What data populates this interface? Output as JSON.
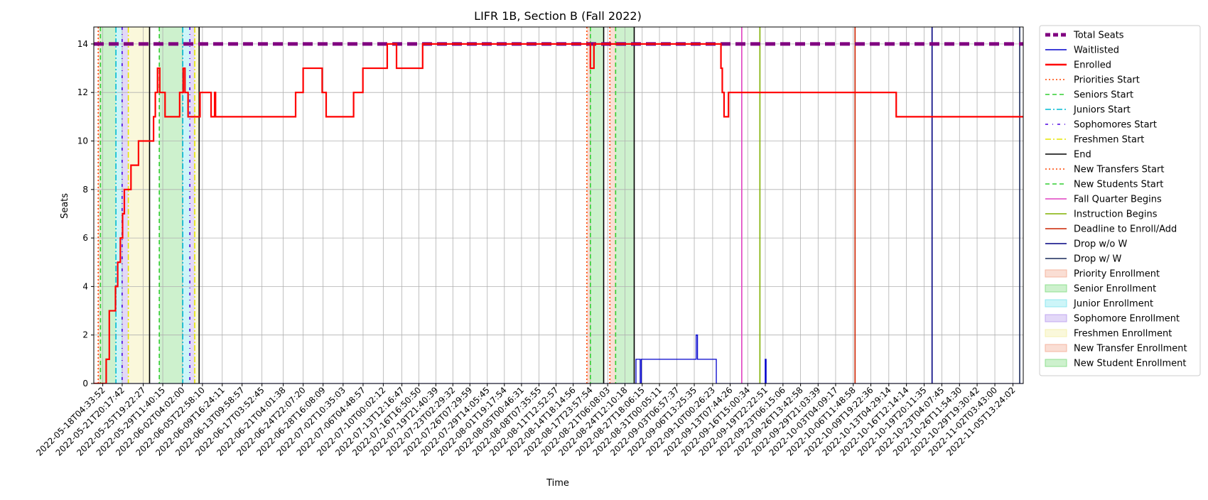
{
  "chart_data": {
    "type": "line",
    "title": "LIFR 1B, Section B (Fall 2022)",
    "xlabel": "Time",
    "ylabel": "Seats",
    "x_scale": "time",
    "xlim": [
      "2022-05-16T12:00:00",
      "2022-11-07T12:00:00"
    ],
    "ylim": [
      0,
      14.7
    ],
    "y_ticks": [
      0,
      2,
      4,
      6,
      8,
      10,
      12,
      14
    ],
    "grid": true,
    "legend_position": "outside-right",
    "x_tick_labels": [
      "2022-05-18T04:33:52",
      "2022-05-21T20:17:42",
      "2022-05-25T19:22:27",
      "2022-05-29T11:40:15",
      "2022-06-02T04:02:00",
      "2022-06-05T22:58:10",
      "2022-06-09T16:24:11",
      "2022-06-13T09:58:57",
      "2022-06-17T03:52:45",
      "2022-06-21T04:01:38",
      "2022-06-24T22:07:20",
      "2022-06-28T16:08:09",
      "2022-07-02T10:35:03",
      "2022-07-06T04:48:57",
      "2022-07-10T00:02:12",
      "2022-07-13T12:16:47",
      "2022-07-16T16:50:50",
      "2022-07-19T21:40:39",
      "2022-07-23T02:29:32",
      "2022-07-26T07:29:59",
      "2022-07-29T14:05:45",
      "2022-08-01T19:17:54",
      "2022-08-05T00:46:31",
      "2022-08-08T07:35:55",
      "2022-08-11T12:52:57",
      "2022-08-14T18:14:56",
      "2022-08-17T23:57:54",
      "2022-08-21T06:08:03",
      "2022-08-24T12:10:18",
      "2022-08-27T18:06:15",
      "2022-08-31T00:05:11",
      "2022-09-03T06:57:37",
      "2022-09-06T13:25:35",
      "2022-09-10T00:26:23",
      "2022-09-13T07:44:26",
      "2022-09-16T15:00:34",
      "2022-09-19T22:22:51",
      "2022-09-23T06:15:06",
      "2022-09-26T13:42:58",
      "2022-09-29T21:03:39",
      "2022-10-03T04:09:17",
      "2022-10-06T11:48:58",
      "2022-10-09T19:22:36",
      "2022-10-13T04:29:14",
      "2022-10-16T12:14:14",
      "2022-10-19T20:11:35",
      "2022-10-23T04:07:45",
      "2022-10-26T11:54:30",
      "2022-10-29T19:30:42",
      "2022-11-02T03:43:00",
      "2022-11-05T13:24:02"
    ],
    "series": [
      {
        "name": "Total Seats",
        "color": "#800080",
        "style": "dashed-thick",
        "kind": "hline",
        "value": 14
      },
      {
        "name": "Waitlisted",
        "color": "#0000cc",
        "style": "step",
        "x": [
          "2022-05-16T12:00:00",
          "2022-08-26T14:00:00",
          "2022-08-26T14:00:00",
          "2022-08-27T09:00:00",
          "2022-08-27T09:00:00",
          "2022-08-27T14:00:00",
          "2022-08-27T14:00:00",
          "2022-09-06T22:00:00",
          "2022-09-06T22:00:00",
          "2022-09-07T04:00:00",
          "2022-09-07T04:00:00",
          "2022-09-10T17:00:00",
          "2022-09-10T17:00:00",
          "2022-09-19T22:00:00",
          "2022-09-19T22:00:00",
          "2022-09-20T02:00:00",
          "2022-09-20T02:00:00",
          "2022-11-07T12:00:00"
        ],
        "y": [
          0,
          0,
          1,
          1,
          0,
          0,
          1,
          1,
          2,
          2,
          1,
          1,
          0,
          0,
          1,
          1,
          0,
          0
        ]
      },
      {
        "name": "Enrolled",
        "color": "#ff0000",
        "style": "step",
        "x": [
          "2022-05-16T12:00:00",
          "2022-05-18T20:00:00",
          "2022-05-18T20:00:00",
          "2022-05-19T10:00:00",
          "2022-05-19T10:00:00",
          "2022-05-20T14:00:00",
          "2022-05-20T14:00:00",
          "2022-05-21T00:00:00",
          "2022-05-21T00:00:00",
          "2022-05-21T12:00:00",
          "2022-05-21T12:00:00",
          "2022-05-21T22:00:00",
          "2022-05-21T22:00:00",
          "2022-05-22T06:00:00",
          "2022-05-22T06:00:00",
          "2022-05-23T12:00:00",
          "2022-05-23T12:00:00",
          "2022-05-24T22:00:00",
          "2022-05-24T22:00:00",
          "2022-05-27T18:00:00",
          "2022-05-27T18:00:00",
          "2022-05-28T02:00:00",
          "2022-05-28T02:00:00",
          "2022-05-28T12:00:00",
          "2022-05-28T12:00:00",
          "2022-05-28T22:00:00",
          "2022-05-28T22:00:00",
          "2022-05-29T22:00:00",
          "2022-05-29T22:00:00",
          "2022-06-01T16:00:00",
          "2022-06-01T16:00:00",
          "2022-06-02T08:00:00",
          "2022-06-02T08:00:00",
          "2022-06-02T16:00:00",
          "2022-06-02T16:00:00",
          "2022-06-03T06:00:00",
          "2022-06-03T06:00:00",
          "2022-06-05T12:00:00",
          "2022-06-05T12:00:00",
          "2022-06-07T14:00:00",
          "2022-06-07T14:00:00",
          "2022-06-08T06:00:00",
          "2022-06-08T06:00:00",
          "2022-06-08T10:00:00",
          "2022-06-08T10:00:00",
          "2022-06-23T12:00:00",
          "2022-06-23T12:00:00",
          "2022-06-24T22:00:00",
          "2022-06-24T22:00:00",
          "2022-06-28T12:00:00",
          "2022-06-28T12:00:00",
          "2022-06-29T06:00:00",
          "2022-06-29T06:00:00",
          "2022-07-04T10:00:00",
          "2022-07-04T10:00:00",
          "2022-07-06T04:00:00",
          "2022-07-06T04:00:00",
          "2022-07-10T18:00:00",
          "2022-07-10T18:00:00",
          "2022-07-12T12:00:00",
          "2022-07-12T12:00:00",
          "2022-07-17T10:00:00",
          "2022-07-17T10:00:00",
          "2022-08-18T00:00:00",
          "2022-08-18T00:00:00",
          "2022-08-18T16:00:00",
          "2022-08-18T16:00:00",
          "2022-08-26T08:00:00",
          "2022-08-26T08:00:00",
          "2022-08-26T14:00:00",
          "2022-08-26T14:00:00",
          "2022-09-11T14:00:00",
          "2022-09-11T14:00:00",
          "2022-09-11T20:00:00",
          "2022-09-11T20:00:00",
          "2022-09-12T04:00:00",
          "2022-09-12T04:00:00",
          "2022-09-13T00:00:00",
          "2022-09-13T00:00:00",
          "2022-09-13T08:00:00",
          "2022-09-13T08:00:00",
          "2022-09-17T08:00:00",
          "2022-09-17T08:00:00",
          "2022-09-18T02:00:00",
          "2022-09-18T02:00:00",
          "2022-09-18T12:00:00",
          "2022-09-18T12:00:00",
          "2022-09-19T06:00:00",
          "2022-09-19T06:00:00",
          "2022-09-21T02:00:00",
          "2022-09-21T02:00:00",
          "2022-09-23T20:00:00",
          "2022-09-23T20:00:00",
          "2022-09-23T22:00:00",
          "2022-09-23T22:00:00",
          "2022-10-06T00:00:00",
          "2022-10-06T00:00:00",
          "2022-10-14T14:00:00",
          "2022-10-14T14:00:00",
          "2022-11-07T12:00:00"
        ],
        "y": [
          0,
          0,
          1,
          1,
          3,
          3,
          4,
          4,
          5,
          5,
          6,
          6,
          7,
          7,
          8,
          8,
          9,
          9,
          10,
          10,
          11,
          11,
          12,
          12,
          13,
          13,
          12,
          12,
          11,
          11,
          12,
          12,
          13,
          13,
          12,
          12,
          11,
          11,
          12,
          12,
          11,
          11,
          12,
          12,
          11,
          11,
          12,
          12,
          13,
          13,
          12,
          12,
          11,
          11,
          12,
          12,
          13,
          13,
          14,
          14,
          13,
          13,
          14,
          14,
          13,
          13,
          14,
          14,
          14,
          14,
          14,
          14,
          13,
          13,
          12,
          12,
          11,
          11,
          12,
          12,
          12,
          12,
          12,
          12,
          12,
          12,
          12,
          12,
          12,
          12,
          12,
          12,
          12,
          12,
          12,
          12,
          12,
          12,
          11,
          11
        ]
      }
    ],
    "vlines": [
      {
        "name": "Priorities Start",
        "color": "#ff4500",
        "style": "dotted",
        "x": [
          "2022-05-17T08:00:00",
          "2022-08-17T08:00:00"
        ]
      },
      {
        "name": "Seniors Start",
        "color": "#32cd32",
        "style": "dashed",
        "x": [
          "2022-05-17T18:00:00",
          "2022-05-28T20:00:00",
          "2022-08-18T00:00:00"
        ]
      },
      {
        "name": "Juniors Start",
        "color": "#00bcd4",
        "style": "dashdot",
        "x": [
          "2022-05-20T16:00:00",
          "2022-06-02T06:00:00"
        ]
      },
      {
        "name": "Sophomores Start",
        "color": "#4b00e0",
        "style": "dashdot-sparse",
        "x": [
          "2022-05-21T20:00:00",
          "2022-06-03T14:00:00"
        ]
      },
      {
        "name": "Freshmen Start",
        "color": "#e6e600",
        "style": "dashdot",
        "x": [
          "2022-05-23T00:00:00",
          "2022-06-04T12:00:00"
        ]
      },
      {
        "name": "End",
        "color": "#000000",
        "style": "solid",
        "x": [
          "2022-05-27T00:00:00",
          "2022-06-05T08:00:00",
          "2022-08-20T12:00:00",
          "2022-08-26T06:00:00"
        ]
      },
      {
        "name": "New Transfers Start",
        "color": "#ff4500",
        "style": "dotted",
        "x": [
          "2022-08-21T16:00:00"
        ]
      },
      {
        "name": "New Students Start",
        "color": "#32cd32",
        "style": "dashed",
        "x": [
          "2022-08-22T18:00:00"
        ]
      },
      {
        "name": "Fall Quarter Begins",
        "color": "#e040c0",
        "style": "solid",
        "x": [
          "2022-09-15T12:00:00"
        ]
      },
      {
        "name": "Instruction Begins",
        "color": "#80b000",
        "style": "solid",
        "x": [
          "2022-09-18T22:00:00"
        ]
      },
      {
        "name": "Deadline to Enroll/Add",
        "color": "#cc2200",
        "style": "solid",
        "x": [
          "2022-10-06T20:00:00"
        ]
      },
      {
        "name": "Drop w/o W",
        "color": "#000080",
        "style": "solid",
        "x": [
          "2022-10-21T08:00:00"
        ]
      },
      {
        "name": "Drop w/ W",
        "color": "#1a2a5a",
        "style": "solid",
        "x": [
          "2022-11-06T20:00:00"
        ]
      }
    ],
    "spans": [
      {
        "name": "Priority Enrollment",
        "color": "#f4b6a0",
        "ranges": [
          [
            "2022-05-17T08:00:00",
            "2022-05-17T18:00:00"
          ],
          [
            "2022-08-17T08:00:00",
            "2022-08-18T00:00:00"
          ]
        ]
      },
      {
        "name": "Senior Enrollment",
        "color": "#90e090",
        "ranges": [
          [
            "2022-05-17T18:00:00",
            "2022-05-20T16:00:00"
          ],
          [
            "2022-05-28T20:00:00",
            "2022-06-02T06:00:00"
          ],
          [
            "2022-08-18T00:00:00",
            "2022-08-20T12:00:00"
          ]
        ]
      },
      {
        "name": "Junior Enrollment",
        "color": "#90e8f0",
        "ranges": [
          [
            "2022-05-20T16:00:00",
            "2022-05-21T20:00:00"
          ],
          [
            "2022-06-02T06:00:00",
            "2022-06-03T14:00:00"
          ]
        ]
      },
      {
        "name": "Sophomore Enrollment",
        "color": "#c0a8f0",
        "ranges": [
          [
            "2022-05-21T20:00:00",
            "2022-05-23T00:00:00"
          ],
          [
            "2022-06-03T14:00:00",
            "2022-06-04T12:00:00"
          ]
        ]
      },
      {
        "name": "Freshmen Enrollment",
        "color": "#f4f0b0",
        "ranges": [
          [
            "2022-05-23T00:00:00",
            "2022-05-27T00:00:00"
          ],
          [
            "2022-06-04T12:00:00",
            "2022-06-05T08:00:00"
          ]
        ]
      },
      {
        "name": "New Transfer Enrollment",
        "color": "#f4b6a0",
        "ranges": [
          [
            "2022-08-21T16:00:00",
            "2022-08-22T18:00:00"
          ]
        ]
      },
      {
        "name": "New Student Enrollment",
        "color": "#90e090",
        "ranges": [
          [
            "2022-08-22T18:00:00",
            "2022-08-26T06:00:00"
          ]
        ]
      }
    ]
  }
}
